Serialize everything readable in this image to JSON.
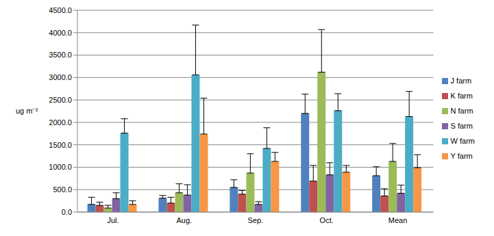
{
  "chart_data": {
    "type": "bar",
    "ylabel": "ug m⁻³",
    "categories": [
      "Jul.",
      "Aug.",
      "Sep.",
      "Oct.",
      "Mean"
    ],
    "series": [
      {
        "name": "J farm",
        "color": "#4F81BD",
        "values": [
          170,
          310,
          550,
          2200,
          810
        ],
        "errors": [
          160,
          60,
          170,
          430,
          200
        ]
      },
      {
        "name": "K farm",
        "color": "#C0504D",
        "values": [
          150,
          200,
          400,
          690,
          360
        ],
        "errors": [
          70,
          130,
          80,
          350,
          160
        ]
      },
      {
        "name": "N farm",
        "color": "#9BBB59",
        "values": [
          90,
          430,
          870,
          3120,
          1130
        ],
        "errors": [
          60,
          200,
          430,
          950,
          400
        ]
      },
      {
        "name": "S farm",
        "color": "#8064A2",
        "values": [
          300,
          380,
          170,
          830,
          420
        ],
        "errors": [
          130,
          230,
          60,
          270,
          180
        ]
      },
      {
        "name": "W farm",
        "color": "#4BACC6",
        "values": [
          1760,
          3060,
          1420,
          2260,
          2130
        ],
        "errors": [
          320,
          1110,
          460,
          380,
          560
        ]
      },
      {
        "name": "Y farm",
        "color": "#F79646",
        "values": [
          170,
          1740,
          1130,
          890,
          990
        ],
        "errors": [
          80,
          800,
          200,
          150,
          290
        ]
      }
    ],
    "ylim": [
      0,
      4500
    ],
    "yticks": [
      {
        "value": 0,
        "label": "0.0"
      },
      {
        "value": 500,
        "label": "500.0"
      },
      {
        "value": 1000,
        "label": "1000.0"
      },
      {
        "value": 1500,
        "label": "1500.0"
      },
      {
        "value": 2000,
        "label": "2000.0"
      },
      {
        "value": 2500,
        "label": "2500.0"
      },
      {
        "value": 3000,
        "label": "3000.0"
      },
      {
        "value": 3500,
        "label": "3500.0"
      },
      {
        "value": 4000,
        "label": "4000.0"
      },
      {
        "value": 4500,
        "label": "4500.0"
      }
    ],
    "grid": true,
    "legend": "right"
  }
}
